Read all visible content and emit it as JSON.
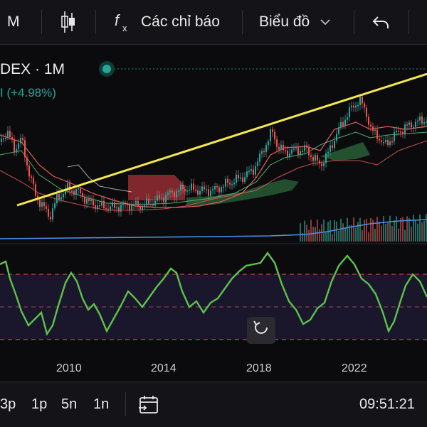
{
  "toolbar": {
    "timeframe_label": "M",
    "indicators_label": "Các chỉ báo",
    "chart_type_label": "Biểu đồ",
    "icons": [
      "candles-icon",
      "fx-icon",
      "chevron-down-icon",
      "undo-icon"
    ]
  },
  "legend": {
    "symbol_label": "DEX · 1M",
    "change_label": "I (+4.98%)",
    "status_color": "#26a69a"
  },
  "time_axis": {
    "labels": [
      "2010",
      "2014",
      "2018",
      "2022"
    ]
  },
  "bottom": {
    "timeframes": [
      "3p",
      "1p",
      "5n",
      "1n"
    ],
    "clock": "09:51:21"
  },
  "colors": {
    "up": "#26a69a",
    "down": "#ef5350",
    "trendline": "#f5e94a",
    "oscillator": "#5dc24a",
    "bands": "#e85a5a"
  }
}
